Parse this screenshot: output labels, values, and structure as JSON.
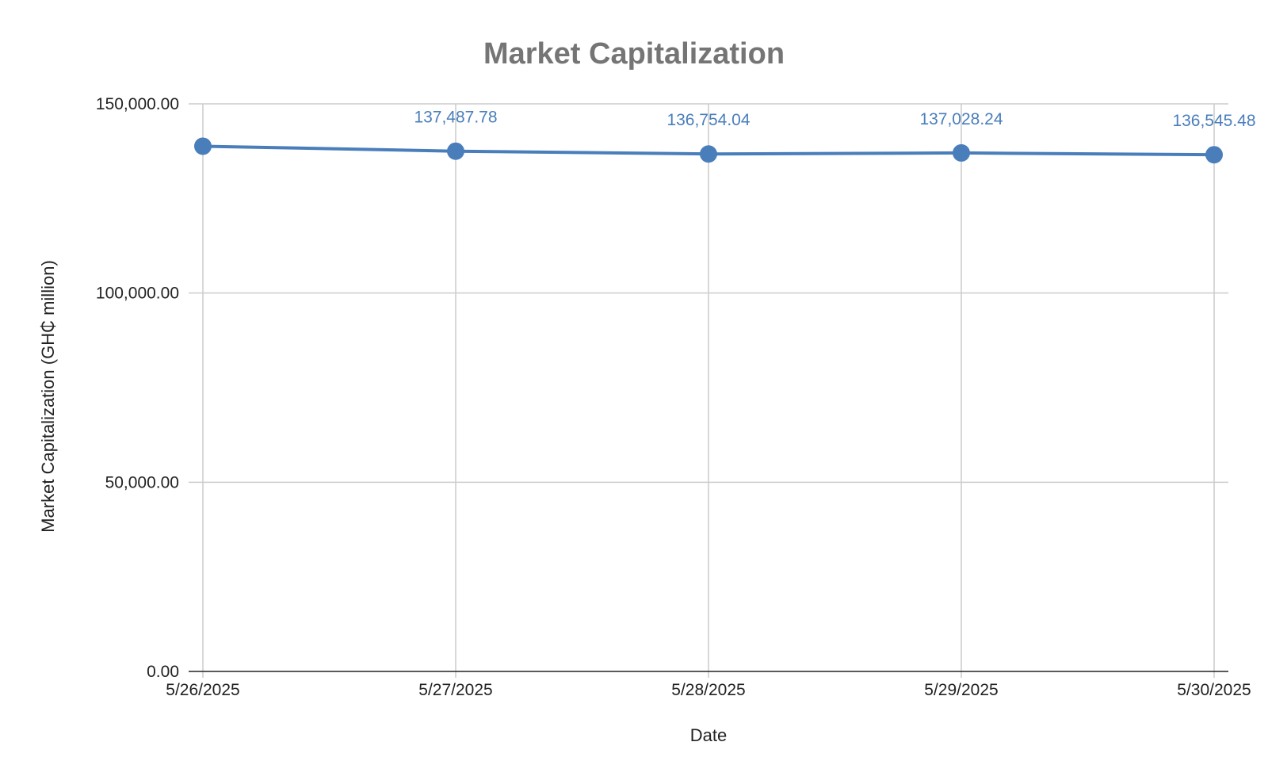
{
  "chart_data": {
    "type": "line",
    "title": "Market Capitalization",
    "xlabel": "Date",
    "ylabel": "Market Capitalization (GH₵ million)",
    "categories": [
      "5/26/2025",
      "5/27/2025",
      "5/28/2025",
      "5/29/2025",
      "5/30/2025"
    ],
    "series": [
      {
        "values": [
          138800,
          137487.78,
          136754.04,
          137028.24,
          136545.48
        ],
        "data_labels": [
          "",
          "137,487.78",
          "136,754.04",
          "137,028.24",
          "136,545.48"
        ],
        "color": "#4a7ebb"
      }
    ],
    "ylim": [
      0,
      150000
    ],
    "yticks": [
      0,
      50000,
      100000,
      150000
    ],
    "ytick_labels": [
      "0.00",
      "50,000.00",
      "100,000.00",
      "150,000.00"
    ],
    "grid": true,
    "legend": "none"
  }
}
